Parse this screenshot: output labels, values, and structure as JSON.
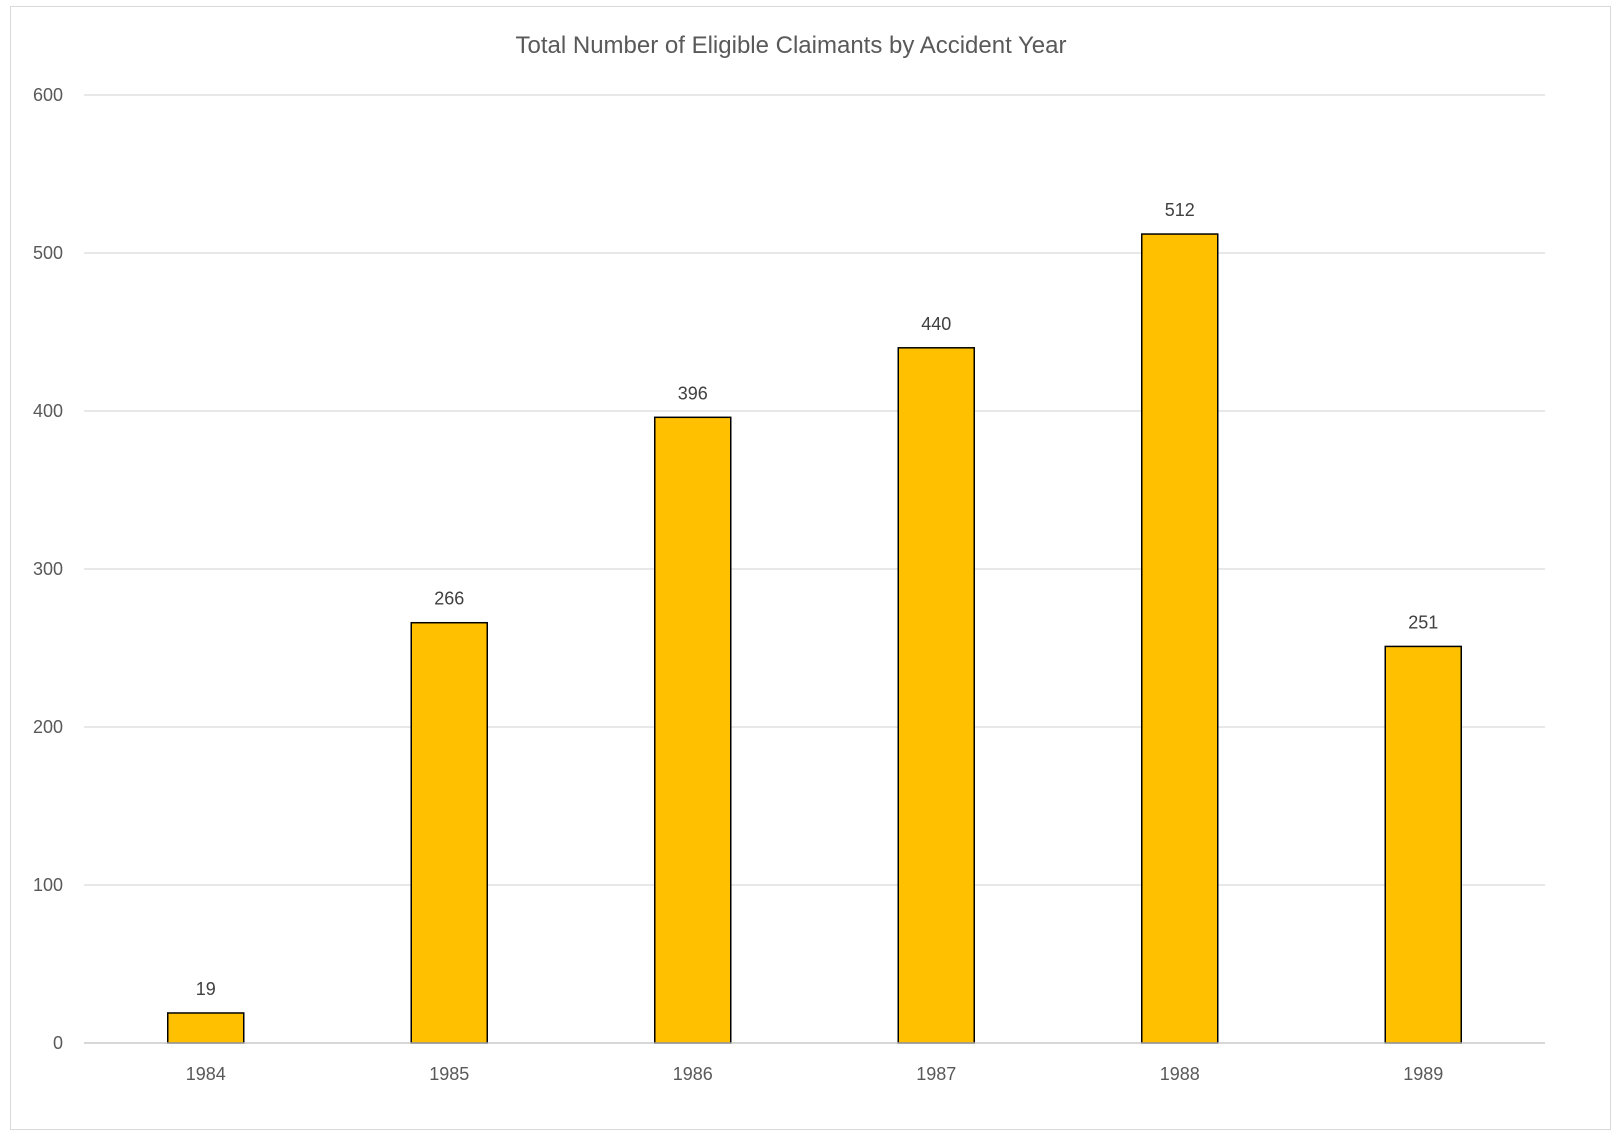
{
  "chart_data": {
    "type": "bar",
    "title": "Total Number of Eligible Claimants by Accident Year",
    "xlabel": "",
    "ylabel": "",
    "categories": [
      "1984",
      "1985",
      "1986",
      "1987",
      "1988",
      "1989"
    ],
    "values": [
      19,
      266,
      396,
      440,
      512,
      251
    ],
    "data_labels": [
      "19",
      "266",
      "396",
      "440",
      "512",
      "251"
    ],
    "ylim": [
      0,
      600
    ],
    "yticks": [
      0,
      100,
      200,
      300,
      400,
      500,
      600
    ],
    "ytick_labels": [
      "0",
      "100",
      "200",
      "300",
      "400",
      "500",
      "600"
    ],
    "grid": true,
    "legend": "none",
    "colors": {
      "bar_fill": "#FFC000",
      "bar_stroke": "#000000",
      "gridline": "#d9d9d9",
      "text": "#595959"
    }
  }
}
